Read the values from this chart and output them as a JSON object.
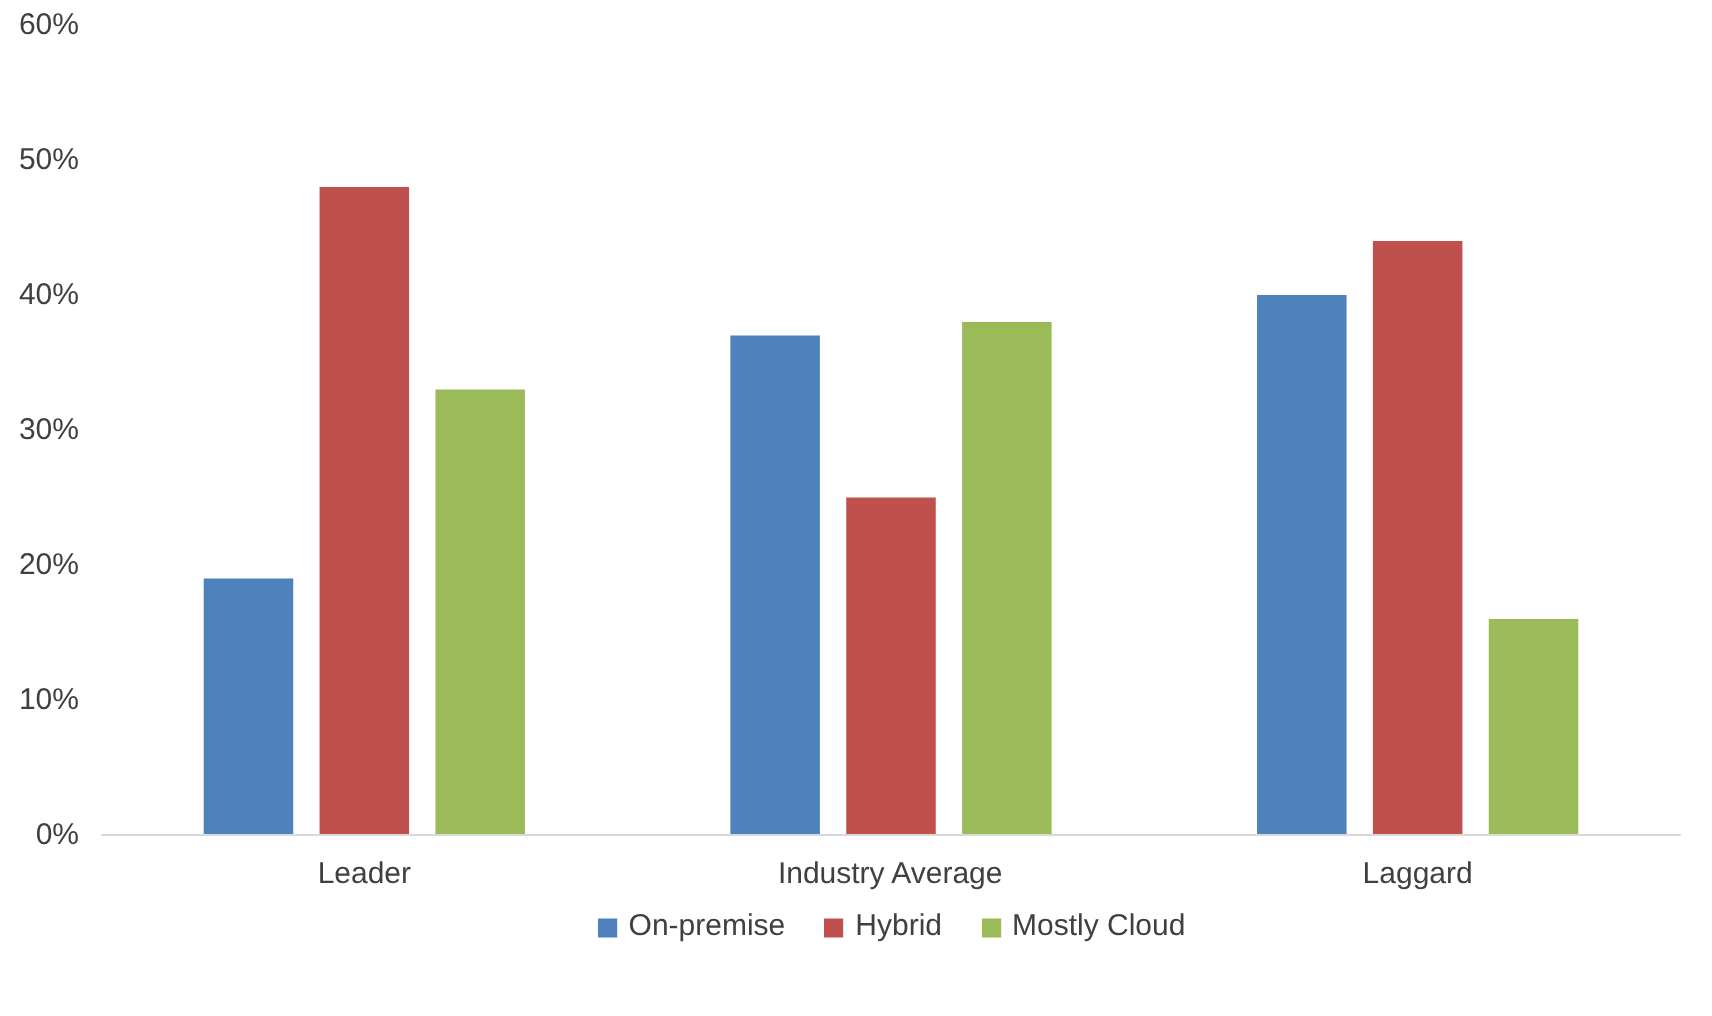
{
  "chart_data": {
    "type": "bar",
    "categories": [
      "Leader",
      "Industry Average",
      "Laggard"
    ],
    "series": [
      {
        "name": "On-premise",
        "color": "#4f81bd",
        "values": [
          19,
          37,
          40
        ]
      },
      {
        "name": "Hybrid",
        "color": "#c0504d",
        "values": [
          48,
          25,
          44
        ]
      },
      {
        "name": "Mostly Cloud",
        "color": "#9bbb59",
        "values": [
          33,
          38,
          16
        ]
      }
    ],
    "ylim": [
      0,
      60
    ],
    "yticks": [
      {
        "value": 0,
        "label": "0%"
      },
      {
        "value": 10,
        "label": "10%"
      },
      {
        "value": 20,
        "label": "20%"
      },
      {
        "value": 30,
        "label": "30%"
      },
      {
        "value": 40,
        "label": "40%"
      },
      {
        "value": 50,
        "label": "50%"
      },
      {
        "value": 60,
        "label": "60%"
      }
    ],
    "grid": false,
    "legend": "bottom"
  }
}
